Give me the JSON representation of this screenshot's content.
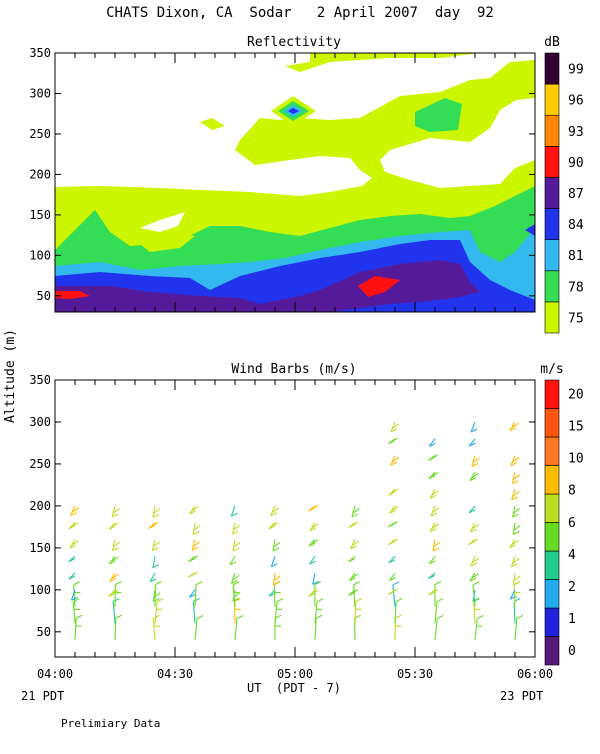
{
  "page": {
    "title": "CHATS Dixon, CA  Sodar   2 April 2007  day  92",
    "y_axis_label": "Altitude (m)",
    "x_axis_label": "UT  (PDT - 7)",
    "start_local": "21 PDT",
    "end_local": "23 PDT",
    "footnote": "Prelimiary Data"
  },
  "chart_data": [
    {
      "type": "heatmap",
      "title": "Reflectivity",
      "ylabel": "Altitude (m)",
      "ylim": [
        30,
        350
      ],
      "yticks": [
        50,
        100,
        150,
        200,
        250,
        300,
        350
      ],
      "xlim": [
        "04:00",
        "06:00"
      ],
      "xticks": [
        "04:00",
        "04:30",
        "05:00",
        "05:30",
        "06:00"
      ],
      "colorbar": {
        "unit": "dB",
        "levels": [
          75,
          78,
          81,
          84,
          87,
          90,
          93,
          96,
          99
        ],
        "colors": [
          "#ccf500",
          "#33dd55",
          "#33b8f0",
          "#2233ee",
          "#551a99",
          "#ff1111",
          "#ff8800",
          "#ffcc00",
          "#330033"
        ]
      },
      "fill_time_range": [
        "04:00",
        "06:00"
      ],
      "fill_altitude_range": [
        40,
        340
      ]
    },
    {
      "type": "scatter",
      "title": "Wind Barbs (m/s)",
      "ylim": [
        20,
        350
      ],
      "yticks": [
        50,
        100,
        150,
        200,
        250,
        300,
        350
      ],
      "xlim": [
        "04:00",
        "06:00"
      ],
      "xticks": [
        "04:00",
        "04:30",
        "05:00",
        "05:30",
        "06:00"
      ],
      "xlabel": "UT  (PDT - 7)",
      "colorbar": {
        "unit": "m/s",
        "levels": [
          0,
          1,
          2,
          4,
          6,
          8,
          10,
          15,
          20
        ],
        "colors": [
          "#551a77",
          "#2222dd",
          "#22aaee",
          "#22cc88",
          "#66dd22",
          "#bbdd22",
          "#ffbb00",
          "#ff7722",
          "#ff5511",
          "#ff1111"
        ]
      },
      "profile_times": [
        "04:05",
        "04:15",
        "04:25",
        "04:35",
        "04:45",
        "04:55",
        "05:05",
        "05:15",
        "05:25",
        "05:35",
        "05:45",
        "05:55"
      ]
    }
  ]
}
